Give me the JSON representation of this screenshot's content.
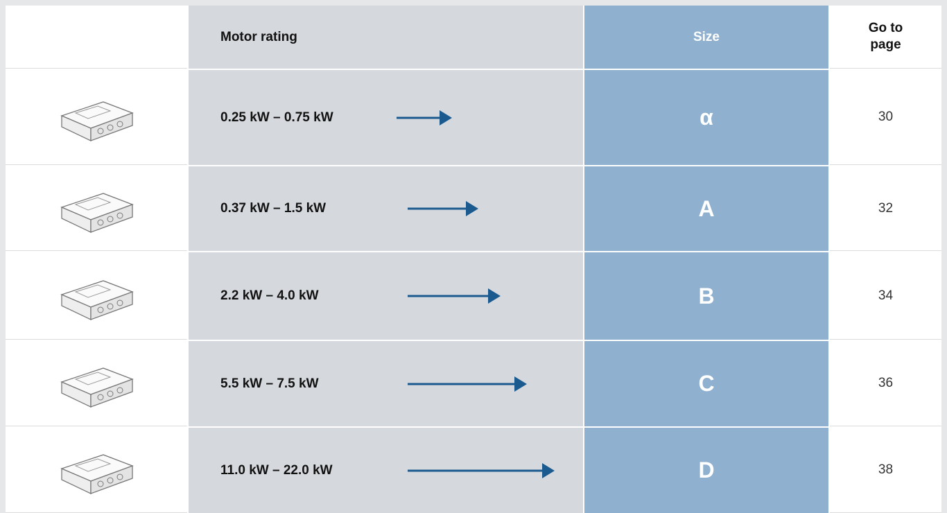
{
  "header": {
    "motor_rating": "Motor rating",
    "size": "Size",
    "go_to_page": "Go to page"
  },
  "rows": [
    {
      "motor_rating": "0.25 kW – 0.75 kW",
      "size": "α",
      "page": 30
    },
    {
      "motor_rating": "0.37 kW – 1.5 kW",
      "size": "A",
      "page": 32
    },
    {
      "motor_rating": "2.2 kW – 4.0 kW",
      "size": "B",
      "page": 34
    },
    {
      "motor_rating": "5.5 kW – 7.5 kW",
      "size": "C",
      "page": 36
    },
    {
      "motor_rating": "11.0 kW – 22.0 kW",
      "size": "D",
      "page": 38
    }
  ]
}
